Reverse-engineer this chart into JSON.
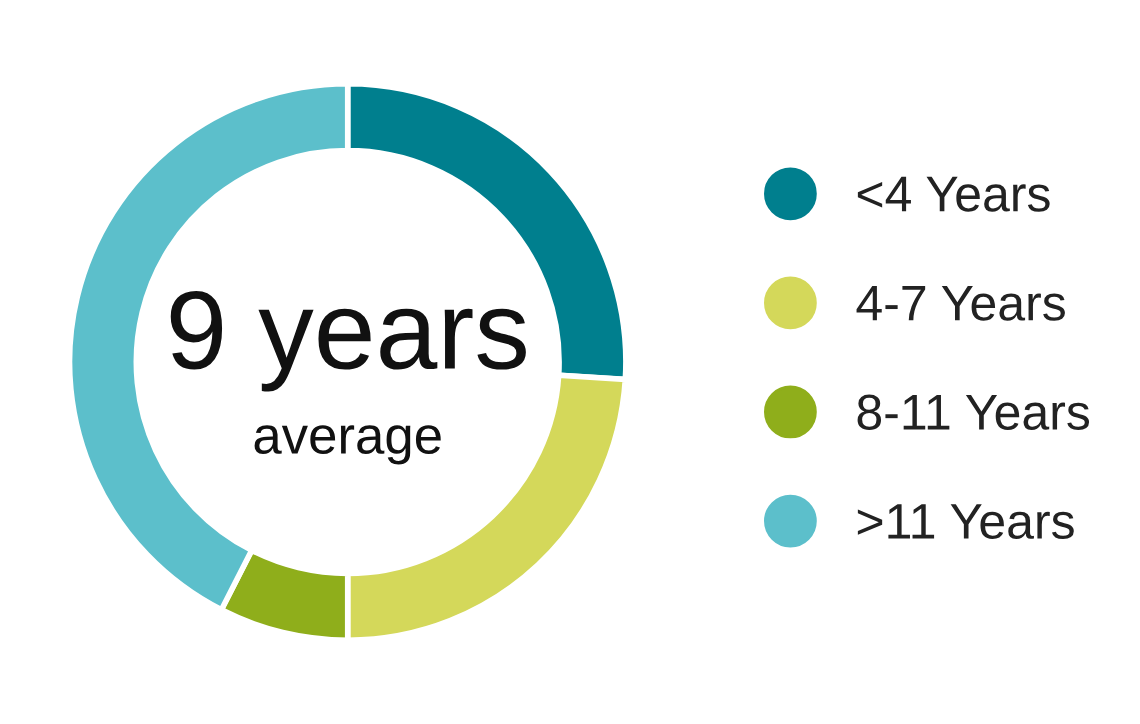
{
  "chart_data": {
    "type": "donut",
    "categories": [
      "<4 Years",
      "4-7 Years",
      "8-11 Years",
      ">11 Years"
    ],
    "values": [
      26,
      24,
      7.5,
      42.5
    ],
    "colors": [
      "#007f8e",
      "#d4d85a",
      "#8fae1b",
      "#5cbfcb"
    ],
    "annotations": [
      "9 years",
      "average"
    ],
    "legend": "right"
  }
}
